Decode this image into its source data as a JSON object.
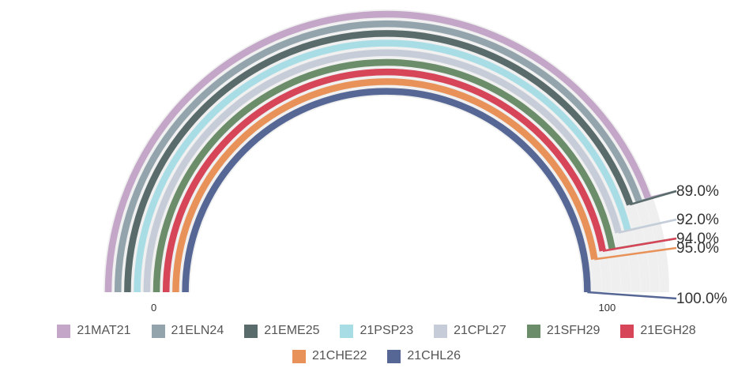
{
  "chart_data": {
    "type": "radial-bar",
    "axis": {
      "min": 0,
      "max": 100,
      "tick_labels": [
        "0",
        "100"
      ]
    },
    "series": [
      {
        "name": "21MAT21",
        "value": 89.0,
        "label": "89.0%",
        "color": "#c4a6c8"
      },
      {
        "name": "21ELN24",
        "value": 89.0,
        "label": "89.0%",
        "color": "#93a4ad"
      },
      {
        "name": "21EME25",
        "value": 89.0,
        "label": "89.0%",
        "color": "#5a6b6b"
      },
      {
        "name": "21PSP23",
        "value": 92.0,
        "label": "92.0%",
        "color": "#a9dde6"
      },
      {
        "name": "21CPL27",
        "value": 92.0,
        "label": "92.0%",
        "color": "#c7cdd8"
      },
      {
        "name": "21SFH29",
        "value": 94.0,
        "label": "94.0%",
        "color": "#6b8d69"
      },
      {
        "name": "21EGH28",
        "value": 94.0,
        "label": "94.0%",
        "color": "#d64558"
      },
      {
        "name": "21CHE22",
        "value": 95.0,
        "label": "95.0%",
        "color": "#e8925a"
      },
      {
        "name": "21CHL26",
        "value": 100.0,
        "label": "100.0%",
        "color": "#566796"
      }
    ],
    "track_color": "#efefef",
    "legend_position": "bottom"
  }
}
